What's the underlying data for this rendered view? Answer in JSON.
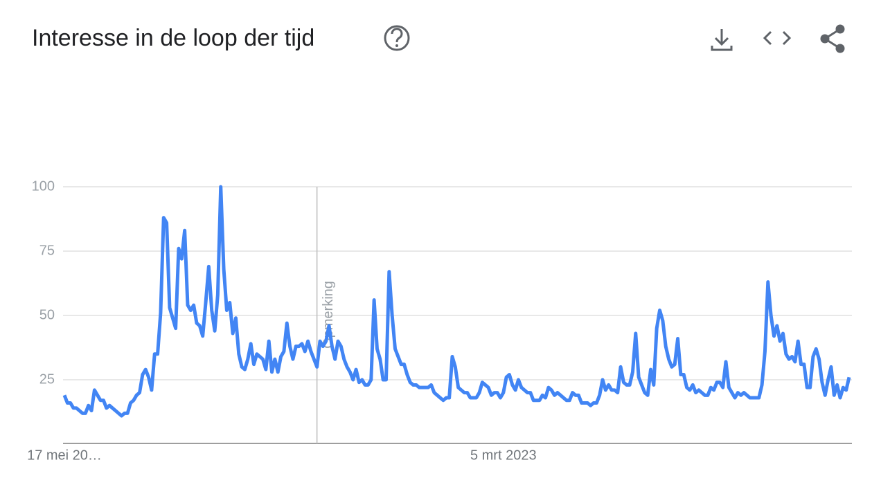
{
  "chart_data": {
    "type": "line",
    "title": "Interesse in de loop der tijd",
    "categories": [
      "17 mei 20…",
      null,
      null,
      null,
      null,
      null,
      null,
      null,
      null,
      null,
      null,
      null,
      null,
      null,
      null,
      null,
      null,
      null,
      null,
      null,
      null,
      null,
      null,
      null,
      null,
      null,
      null,
      null,
      null,
      null,
      null,
      null,
      null,
      null,
      null,
      null,
      null,
      null,
      null,
      null,
      null,
      null,
      null,
      null,
      null,
      null,
      null,
      null,
      null,
      null,
      null,
      null,
      null,
      null,
      null,
      null,
      null,
      null,
      null,
      null,
      null,
      null,
      null,
      null,
      null,
      null,
      null,
      null,
      null,
      null,
      null,
      null,
      null,
      null,
      null,
      null,
      null,
      null,
      null,
      null,
      null,
      null,
      null,
      null,
      null,
      null,
      null,
      null,
      null,
      null,
      null,
      null,
      null,
      null,
      null,
      null,
      null,
      null,
      null,
      null,
      null,
      null,
      null,
      null,
      null,
      null,
      null,
      null,
      null,
      null,
      null,
      null,
      null,
      null,
      null,
      null,
      null,
      null,
      null,
      null,
      null,
      null,
      null,
      null,
      null,
      null,
      null,
      null,
      null,
      null,
      null,
      null,
      null,
      null,
      null,
      null,
      null,
      null,
      null,
      null,
      null,
      null,
      null,
      null,
      null,
      null,
      "5 mrt 2023",
      null,
      null,
      null,
      null,
      null,
      null,
      null,
      null,
      null,
      null,
      null,
      null,
      null,
      null,
      null,
      null,
      null,
      null,
      null,
      null,
      null,
      null,
      null,
      null,
      null,
      null,
      null,
      null,
      null,
      null,
      null,
      null,
      null,
      null,
      null,
      null,
      null,
      null,
      null,
      null,
      null,
      null,
      null,
      null,
      null,
      null,
      null,
      null,
      null,
      null,
      null,
      null,
      null,
      null,
      null,
      null,
      null,
      null,
      null,
      null,
      null,
      null,
      null,
      null,
      null,
      null,
      null,
      null,
      null,
      null,
      null,
      null,
      null,
      null,
      null,
      null,
      null,
      null,
      null,
      null,
      null,
      null,
      null,
      null,
      null,
      null,
      null,
      null,
      null,
      null,
      null,
      null,
      null,
      null,
      null,
      null,
      null,
      null,
      null,
      null,
      null,
      null,
      null,
      null,
      null,
      null,
      null,
      null,
      null,
      null,
      null,
      null,
      null,
      null,
      null
    ],
    "series": [
      {
        "color": "#4285f4",
        "values": [
          19,
          16,
          16,
          14,
          14,
          13,
          12,
          12,
          15,
          13,
          21,
          19,
          17,
          17,
          14,
          15,
          14,
          13,
          12,
          11,
          12,
          12,
          16,
          17,
          19,
          20,
          27,
          29,
          26,
          21,
          35,
          35,
          51,
          88,
          86,
          53,
          49,
          45,
          76,
          72,
          83,
          54,
          52,
          54,
          47,
          46,
          42,
          55,
          69,
          52,
          44,
          58,
          100,
          68,
          52,
          55,
          43,
          49,
          35,
          30,
          29,
          33,
          39,
          31,
          35,
          34,
          33,
          29,
          40,
          28,
          33,
          28,
          34,
          36,
          47,
          38,
          33,
          38,
          38,
          39,
          36,
          40,
          36,
          33,
          30,
          40,
          38,
          40,
          46,
          38,
          33,
          40,
          38,
          33,
          30,
          28,
          25,
          29,
          24,
          25,
          23,
          23,
          25,
          56,
          37,
          33,
          25,
          25,
          67,
          50,
          37,
          34,
          31,
          31,
          27,
          24,
          23,
          23,
          22,
          22,
          22,
          22,
          23,
          20,
          19,
          18,
          17,
          18,
          18,
          34,
          30,
          22,
          21,
          20,
          20,
          18,
          18,
          18,
          20,
          24,
          23,
          22,
          19,
          20,
          20,
          18,
          20,
          26,
          27,
          23,
          21,
          25,
          22,
          21,
          20,
          20,
          17,
          17,
          17,
          19,
          18,
          22,
          21,
          19,
          20,
          19,
          18,
          17,
          17,
          20,
          19,
          19,
          16,
          16,
          16,
          15,
          16,
          16,
          19,
          25,
          21,
          23,
          21,
          21,
          20,
          30,
          24,
          23,
          23,
          28,
          43,
          26,
          23,
          20,
          19,
          29,
          23,
          45,
          52,
          48,
          38,
          33,
          30,
          31,
          41,
          27,
          27,
          22,
          21,
          23,
          20,
          21,
          20,
          19,
          19,
          22,
          21,
          24,
          24,
          22,
          32,
          22,
          20,
          18,
          20,
          19,
          20,
          19,
          18,
          18,
          18,
          18,
          23,
          36,
          63,
          50,
          42,
          46,
          40,
          43,
          35,
          33,
          34,
          32,
          40,
          31,
          31,
          22,
          22,
          34,
          37,
          33,
          24,
          19,
          25,
          30,
          19,
          23,
          18,
          22,
          21,
          26
        ]
      }
    ],
    "ylim": [
      0,
      100
    ],
    "yticks": [
      25,
      50,
      75,
      100
    ],
    "grid": true,
    "annotations": [
      {
        "text": "Opmerking",
        "index": 84
      }
    ]
  }
}
